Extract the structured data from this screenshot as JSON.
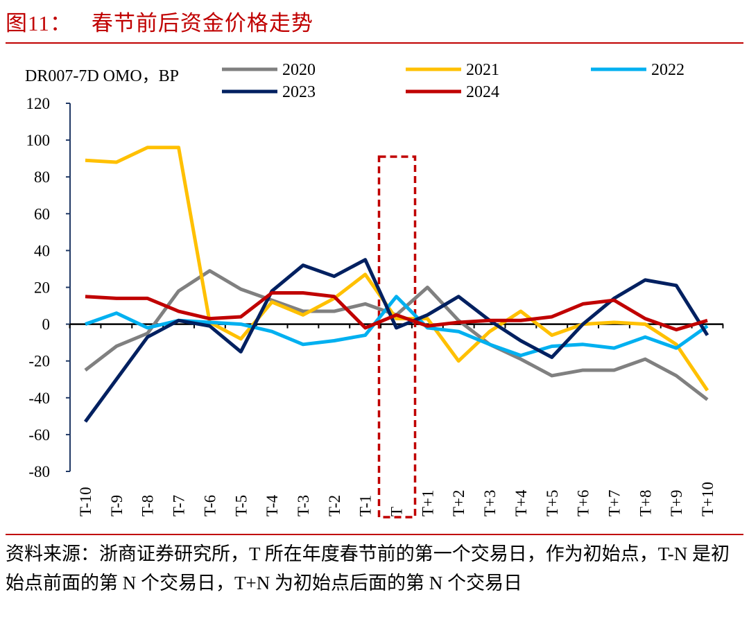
{
  "header": {
    "figure_no": "图11：",
    "title": "春节前后资金价格走势"
  },
  "footer": {
    "note": "资料来源：浙商证券研究所，T 所在年度春节前的第一个交易日，作为初始点，T-N 是初始点前面的第 N 个交易日，T+N 为初始点后面的第 N 个交易日"
  },
  "chart_data": {
    "type": "line",
    "ylabel": "DR007-7D OMO，BP",
    "ylim": [
      -80,
      120
    ],
    "yticks": [
      120,
      100,
      80,
      60,
      40,
      20,
      0,
      -20,
      -40,
      -60,
      -80
    ],
    "categories": [
      "T-10",
      "T-9",
      "T-8",
      "T-7",
      "T-6",
      "T-5",
      "T-4",
      "T-3",
      "T-2",
      "T-1",
      "T",
      "T+1",
      "T+2",
      "T+3",
      "T+4",
      "T+5",
      "T+6",
      "T+7",
      "T+8",
      "T+9",
      "T+10"
    ],
    "highlight_category": "T",
    "highlight_color": "#c00000",
    "grid": false,
    "legend_position": "top",
    "series": [
      {
        "name": "2020",
        "color": "#808080",
        "values": [
          -25,
          -12,
          -5,
          18,
          29,
          19,
          13,
          7,
          7,
          11,
          5,
          20,
          2,
          -11,
          -19,
          -28,
          -25,
          -25,
          -19,
          -28,
          -41
        ]
      },
      {
        "name": "2021",
        "color": "#ffc000",
        "values": [
          89,
          88,
          96,
          96,
          1,
          -8,
          12,
          5,
          14,
          27,
          3,
          3,
          -20,
          -4,
          7,
          -6,
          0,
          1,
          0,
          -11,
          -36
        ]
      },
      {
        "name": "2022",
        "color": "#00b0f0",
        "values": [
          0,
          6,
          -2,
          2,
          1,
          0,
          -4,
          -11,
          -9,
          -6,
          15,
          -2,
          -4,
          -11,
          -17,
          -12,
          -11,
          -13,
          -7,
          -13,
          -1
        ]
      },
      {
        "name": "2023",
        "color": "#002060",
        "values": [
          -53,
          -30,
          -7,
          2,
          -1,
          -15,
          18,
          32,
          26,
          35,
          -2,
          5,
          15,
          2,
          -9,
          -18,
          0,
          14,
          24,
          21,
          -6
        ]
      },
      {
        "name": "2024",
        "color": "#c00000",
        "values": [
          15,
          14,
          14,
          7,
          3,
          4,
          17,
          17,
          15,
          -2,
          5,
          -1,
          1,
          2,
          2,
          4,
          11,
          13,
          3,
          -3,
          2
        ]
      }
    ]
  }
}
